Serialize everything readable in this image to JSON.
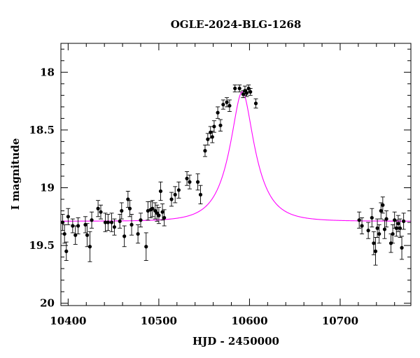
{
  "chart_data": {
    "type": "scatter",
    "title": "OGLE-2024-BLG-1268",
    "xlabel": "HJD - 2450000",
    "ylabel": "I magnitude",
    "xlim": [
      10392,
      10778
    ],
    "ylim": [
      20.02,
      17.75
    ],
    "y_inverted": true,
    "x_ticks": [
      10400,
      10500,
      10600,
      10700
    ],
    "y_ticks": [
      18,
      18.5,
      19,
      19.5,
      20
    ],
    "y_tick_labels": [
      "18",
      "18.5",
      "19",
      "19.5",
      "20"
    ],
    "grid": false,
    "colors": {
      "data": "#000000",
      "model": "#ff00ff"
    },
    "series": [
      {
        "kind": "points_with_errorbars",
        "points": [
          [
            10394,
            19.3,
            0.07
          ],
          [
            10396,
            19.4,
            0.08
          ],
          [
            10398,
            19.55,
            0.08
          ],
          [
            10400,
            19.25,
            0.07
          ],
          [
            10405,
            19.33,
            0.06
          ],
          [
            10408,
            19.41,
            0.08
          ],
          [
            10411,
            19.33,
            0.07
          ],
          [
            10419,
            19.32,
            0.07
          ],
          [
            10421,
            19.41,
            0.1
          ],
          [
            10424,
            19.51,
            0.13
          ],
          [
            10426,
            19.28,
            0.07
          ],
          [
            10433,
            19.18,
            0.07
          ],
          [
            10436,
            19.21,
            0.06
          ],
          [
            10441,
            19.3,
            0.08
          ],
          [
            10444,
            19.3,
            0.07
          ],
          [
            10448,
            19.3,
            0.08
          ],
          [
            10451,
            19.34,
            0.07
          ],
          [
            10457,
            19.29,
            0.06
          ],
          [
            10459,
            19.2,
            0.07
          ],
          [
            10462,
            19.42,
            0.09
          ],
          [
            10466,
            19.1,
            0.07
          ],
          [
            10468,
            19.18,
            0.07
          ],
          [
            10470,
            19.32,
            0.09
          ],
          [
            10477,
            19.4,
            0.08
          ],
          [
            10480,
            19.28,
            0.06
          ],
          [
            10486,
            19.51,
            0.12
          ],
          [
            10488,
            19.2,
            0.08
          ],
          [
            10491,
            19.19,
            0.07
          ],
          [
            10493,
            19.18,
            0.07
          ],
          [
            10496,
            19.2,
            0.07
          ],
          [
            10498,
            19.22,
            0.07
          ],
          [
            10500,
            19.24,
            0.07
          ],
          [
            10502,
            19.03,
            0.08
          ],
          [
            10504,
            19.21,
            0.07
          ],
          [
            10506,
            19.26,
            0.07
          ],
          [
            10514,
            19.1,
            0.06
          ],
          [
            10518,
            19.06,
            0.07
          ],
          [
            10522,
            19.02,
            0.07
          ],
          [
            10531,
            18.92,
            0.06
          ],
          [
            10534,
            18.95,
            0.06
          ],
          [
            10543,
            18.95,
            0.07
          ],
          [
            10546,
            19.06,
            0.08
          ],
          [
            10551,
            18.68,
            0.05
          ],
          [
            10554,
            18.58,
            0.05
          ],
          [
            10557,
            18.52,
            0.05
          ],
          [
            10559,
            18.56,
            0.05
          ],
          [
            10561,
            18.47,
            0.05
          ],
          [
            10565,
            18.35,
            0.05
          ],
          [
            10568,
            18.46,
            0.05
          ],
          [
            10571,
            18.28,
            0.04
          ],
          [
            10575,
            18.26,
            0.04
          ],
          [
            10578,
            18.29,
            0.05
          ],
          [
            10584,
            18.14,
            0.03
          ],
          [
            10589,
            18.14,
            0.03
          ],
          [
            10593,
            18.19,
            0.03
          ],
          [
            10595,
            18.16,
            0.04
          ],
          [
            10597,
            18.18,
            0.03
          ],
          [
            10599,
            18.14,
            0.03
          ],
          [
            10601,
            18.17,
            0.03
          ],
          [
            10607,
            18.27,
            0.04
          ],
          [
            10721,
            19.28,
            0.07
          ],
          [
            10724,
            19.33,
            0.07
          ],
          [
            10731,
            19.37,
            0.07
          ],
          [
            10735,
            19.26,
            0.08
          ],
          [
            10737,
            19.48,
            0.1
          ],
          [
            10739,
            19.55,
            0.12
          ],
          [
            10741,
            19.35,
            0.08
          ],
          [
            10743,
            19.4,
            0.08
          ],
          [
            10745,
            19.2,
            0.07
          ],
          [
            10747,
            19.15,
            0.07
          ],
          [
            10749,
            19.36,
            0.08
          ],
          [
            10751,
            19.27,
            0.07
          ],
          [
            10756,
            19.48,
            0.08
          ],
          [
            10758,
            19.4,
            0.08
          ],
          [
            10760,
            19.28,
            0.07
          ],
          [
            10762,
            19.35,
            0.07
          ],
          [
            10764,
            19.31,
            0.07
          ],
          [
            10766,
            19.35,
            0.08
          ],
          [
            10768,
            19.52,
            0.1
          ],
          [
            10770,
            19.29,
            0.07
          ]
        ]
      },
      {
        "kind": "model_curve",
        "baseline": 19.29,
        "peak_time": 10592,
        "peak_mag": 18.17,
        "width": 27
      }
    ]
  }
}
